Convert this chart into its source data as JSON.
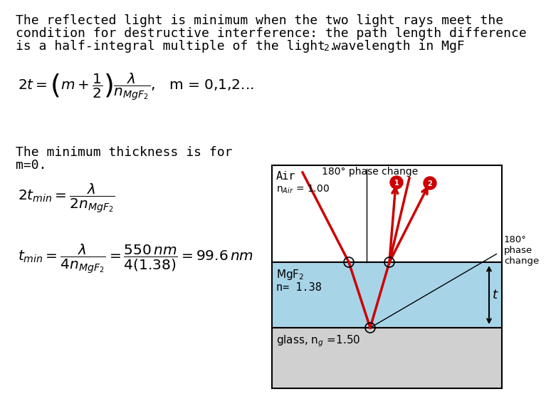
{
  "bg_color": "#ffffff",
  "diagram": {
    "air_color": "#ffffff",
    "mgf2_color": "#a8d4e8",
    "glass_color": "#d0d0d0",
    "ray_color": "#cc0000",
    "border_color": "#000000",
    "phase_change_top": "180° phase change",
    "phase_change_right": "180°\nphase\nchange",
    "air_label": "Air",
    "air_n_label": "n$_{Air}$ = 1.00",
    "mgf2_label": "MgF$_2$",
    "mgf2_n_label": "n= 1.38",
    "glass_label": "glass, n$_g$ =1.50",
    "t_label": "t"
  }
}
